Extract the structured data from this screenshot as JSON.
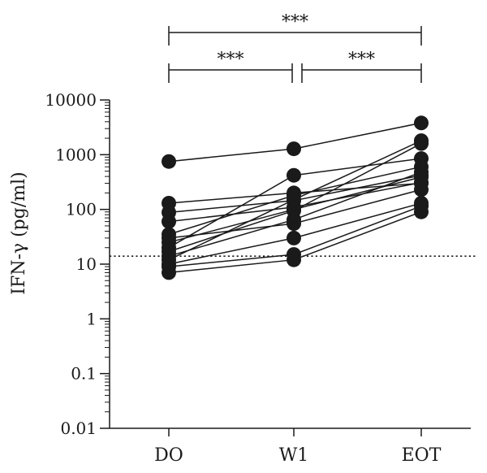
{
  "chart_data": {
    "type": "line",
    "ylabel": "IFN-γ (pg/ml)",
    "yscale": "log",
    "ylim": [
      0.01,
      10000
    ],
    "yticks": [
      "10000",
      "1000",
      "100",
      "10",
      "1",
      "0.1",
      "0.01"
    ],
    "ytick_values": [
      10000,
      1000,
      100,
      10,
      1,
      0.1,
      0.01
    ],
    "categories": [
      "DO",
      "W1",
      "EOT"
    ],
    "threshold": 14,
    "grid": false,
    "legend": "none",
    "subjects": [
      {
        "values": [
          750,
          1280,
          3800
        ]
      },
      {
        "values": [
          130,
          200,
          300
        ]
      },
      {
        "values": [
          88,
          145,
          420
        ]
      },
      {
        "values": [
          60,
          110,
          310
        ]
      },
      {
        "values": [
          35,
          180,
          600
        ]
      },
      {
        "values": [
          30,
          55,
          230
        ]
      },
      {
        "values": [
          20,
          420,
          850
        ]
      },
      {
        "values": [
          17,
          95,
          1600
        ]
      },
      {
        "values": [
          12,
          150,
          1800
        ]
      },
      {
        "values": [
          10,
          30,
          130
        ]
      },
      {
        "values": [
          9,
          15,
          115
        ]
      },
      {
        "values": [
          7,
          12,
          90
        ]
      },
      {
        "values": [
          14,
          65,
          480
        ]
      },
      {
        "values": [
          25,
          100,
          390
        ]
      }
    ],
    "significance": [
      {
        "from": "DO",
        "to": "W1",
        "label": "***"
      },
      {
        "from": "W1",
        "to": "EOT",
        "label": "***"
      },
      {
        "from": "DO",
        "to": "EOT",
        "label": "***"
      }
    ],
    "colors": {
      "marker": "#1a1a1a",
      "line": "#1a1a1a",
      "axis": "#1a1a1a"
    }
  }
}
